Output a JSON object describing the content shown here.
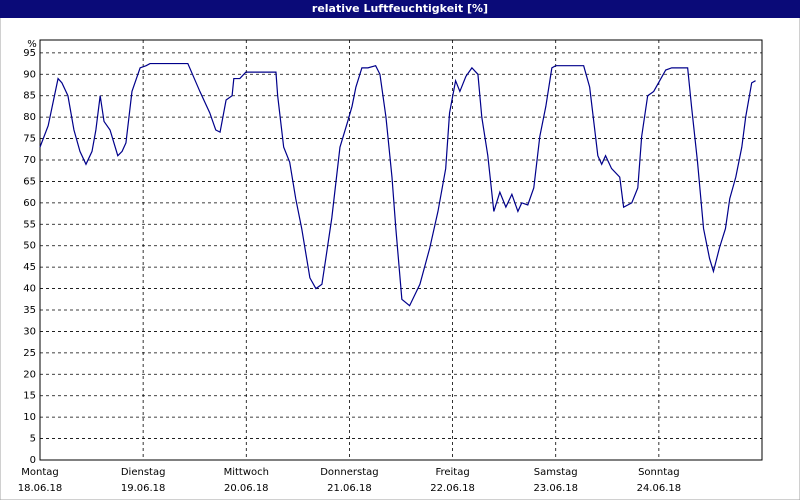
{
  "chart_data": {
    "type": "line",
    "title": "relative Luftfeuchtigkeit [%]",
    "ylabel": "%",
    "xlim": [
      0,
      168
    ],
    "ylim": [
      0,
      98
    ],
    "yticks": [
      0,
      5,
      10,
      15,
      20,
      25,
      30,
      35,
      40,
      45,
      50,
      55,
      60,
      65,
      70,
      75,
      80,
      85,
      90,
      95
    ],
    "xticks": [
      {
        "value": 0,
        "label": "Montag"
      },
      {
        "value": 24,
        "label": "Dienstag"
      },
      {
        "value": 48,
        "label": "Mittwoch"
      },
      {
        "value": 72,
        "label": "Donnerstag"
      },
      {
        "value": 96,
        "label": "Freitag"
      },
      {
        "value": 120,
        "label": "Samstag"
      },
      {
        "value": 144,
        "label": "Sonntag"
      }
    ],
    "xtick_dates": [
      "18.06.18",
      "19.06.18",
      "20.06.18",
      "21.06.18",
      "22.06.18",
      "23.06.18",
      "24.06.18"
    ],
    "grid": true,
    "series": [
      {
        "name": "relative Luftfeuchtigkeit",
        "color": "#00008b",
        "x": [
          0,
          1.9,
          4.2,
          5.1,
          6.5,
          7.9,
          9.3,
          10.7,
          12.1,
          13.0,
          14.0,
          14.9,
          16.3,
          18.1,
          19.1,
          20.0,
          21.4,
          23.3,
          24.7,
          25.6,
          34.4,
          37.2,
          39.5,
          40.9,
          41.9,
          43.3,
          44.7,
          45.1,
          46.5,
          47.9,
          54.9,
          55.3,
          56.7,
          58.1,
          59.5,
          60.9,
          62.8,
          64.2,
          65.6,
          66.5,
          67.9,
          69.8,
          71.6,
          72.6,
          73.5,
          74.9,
          76.3,
          78.1,
          79.1,
          80.5,
          81.9,
          82.8,
          84.2,
          86.0,
          88.4,
          90.7,
          92.6,
          94.4,
          95.3,
          96.7,
          97.7,
          99.1,
          100.5,
          101.9,
          102.8,
          104.2,
          105.6,
          107.0,
          108.4,
          109.8,
          111.2,
          112.1,
          113.5,
          114.9,
          116.3,
          117.7,
          119.1,
          120.0,
          126.5,
          127.9,
          129.8,
          130.7,
          131.6,
          133.0,
          134.9,
          135.8,
          137.7,
          139.1,
          140.0,
          141.4,
          142.8,
          144.2,
          145.6,
          147.0,
          150.7,
          151.6,
          153.0,
          154.4,
          155.8,
          156.7,
          158.1,
          159.5,
          160.5,
          161.9,
          163.3,
          164.2,
          165.6,
          166.5
        ],
        "values": [
          73,
          78,
          89,
          88,
          85,
          77,
          72,
          69,
          72,
          77,
          85,
          79,
          77,
          71,
          72,
          74,
          86,
          91.5,
          92,
          92.5,
          92.5,
          86,
          81,
          77,
          76.5,
          84,
          85,
          89,
          89,
          90.5,
          90.5,
          85,
          73,
          69.5,
          61,
          54,
          42.5,
          40,
          41,
          47,
          56.5,
          73,
          79,
          82.5,
          87,
          91.5,
          91.5,
          92,
          90,
          80,
          66,
          54,
          37.5,
          36,
          41,
          49.5,
          58,
          68,
          81,
          88.5,
          86,
          89.5,
          91.5,
          90,
          80,
          71,
          58,
          62.5,
          59,
          62,
          58,
          60,
          59.5,
          63.5,
          75.5,
          82.5,
          91.5,
          92,
          92,
          87,
          71,
          69,
          71,
          68,
          66,
          59,
          60,
          63.5,
          75.5,
          85,
          86,
          88.5,
          91,
          91.5,
          91.5,
          82.5,
          69.5,
          54,
          47,
          44,
          49.5,
          54,
          61,
          66,
          73,
          80,
          88,
          88.5
        ]
      }
    ]
  }
}
